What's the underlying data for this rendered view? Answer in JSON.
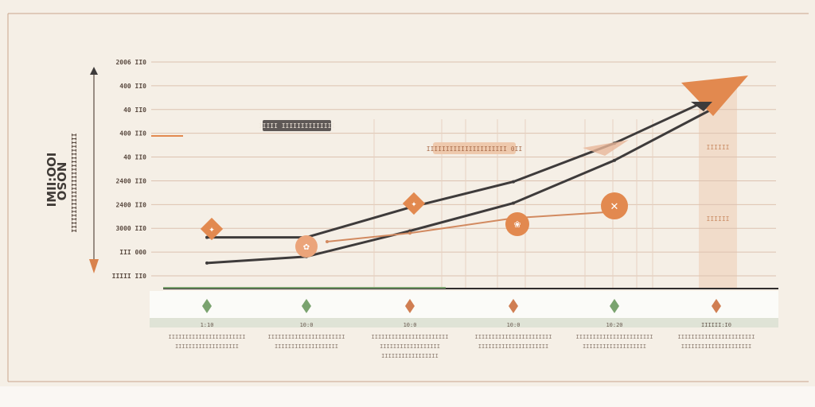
{
  "chart_data": {
    "type": "line",
    "y_axis_title_lines": [
      "IMII:OOI",
      "IIIIIIIIIIIIIIIIIIIIIIIIII"
    ],
    "y_axis_title_rotated": "NOSO",
    "y_ticks": [
      "2006 II0",
      "400 II0",
      "40 II0",
      "400 II0",
      "40 II0",
      "2400 II0",
      "2400 II0",
      "3000 II0",
      "III 000",
      "IIIII II0"
    ],
    "categories": [
      {
        "top": "1:10",
        "line1": "IIIIIIIIIIIIIIIIIIIIIII",
        "line2": "IIIIIIIIIIIIIIIIIII",
        "line3": ""
      },
      {
        "top": "10:0",
        "line1": "IIIIIIIIIIIIIIIIIIIIIII",
        "line2": "IIIIIIIIIIIIIIIIIII",
        "line3": ""
      },
      {
        "top": "10:0",
        "line1": "IIIIIIIIIIIIIIIIIIIIIII",
        "line2": "IIIIIIIIIIIIIIIIII",
        "line3": "IIIIIIIIIIIIIIIII"
      },
      {
        "top": "10:0",
        "line1": "IIIIIIIIIIIIIIIIIIIIIII",
        "line2": "IIIIIIIIIIIIIIIIIIIII",
        "line3": ""
      },
      {
        "top": "10:20",
        "line1": "IIIIIIIIIIIIIIIIIIIIIII",
        "line2": "IIIIIIIIIIIIIIIIIII",
        "line3": ""
      },
      {
        "top": "IIIIII:I0",
        "line1": "IIIIIIIIIIIIIIIIIIIIIII",
        "line2": "IIIIIIIIIIIIIIIIIIIII",
        "line3": ""
      }
    ],
    "marker_colors": [
      "#7aa36f",
      "#7aa36f",
      "#d07e52",
      "#d07e52",
      "#7aa36f",
      "#d07e52"
    ],
    "annotations": [
      {
        "text": "IIIII IIIIIIIIIIIIII",
        "style": "dark"
      },
      {
        "text": "IIIIIIIIIIIIIIIIIIIII 0II",
        "style": "light"
      }
    ],
    "side_labels": [
      "IIIIII",
      "IIIIII"
    ],
    "series": [
      {
        "color": "#3e3b3b",
        "points": [
          [
            0,
            1.8
          ],
          [
            1,
            1.8
          ],
          [
            2,
            3.2
          ],
          [
            3,
            4.4
          ],
          [
            4,
            6.2
          ],
          [
            5,
            8.4
          ]
        ]
      },
      {
        "color": "#3e3b3b",
        "points": [
          [
            0,
            0.6
          ],
          [
            1,
            0.9
          ],
          [
            2,
            2.1
          ],
          [
            3,
            3.4
          ],
          [
            4,
            5.4
          ],
          [
            5,
            7.9
          ]
        ]
      },
      {
        "color": "#d28a60",
        "points": [
          [
            1.2,
            1.6
          ],
          [
            2,
            2.0
          ],
          [
            3,
            2.7
          ],
          [
            4,
            3.0
          ]
        ]
      }
    ],
    "ylim": [
      0,
      10
    ],
    "grid": true,
    "colors": {
      "accent": "#e2894f",
      "dark_line": "#3e3b3b",
      "orange_line": "#d28a60",
      "green": "#7aa36f",
      "background": "#f5efe6"
    }
  }
}
